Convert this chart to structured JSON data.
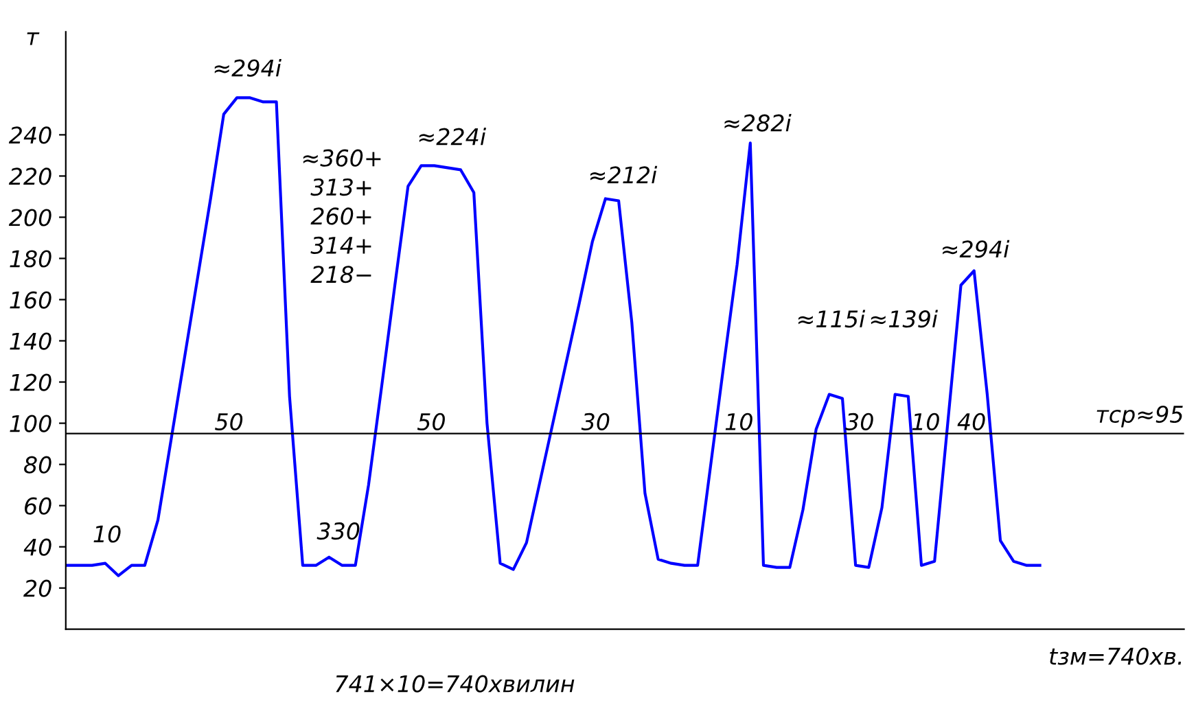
{
  "chart_data": {
    "type": "line",
    "ylabel": "т",
    "xlabel": "tзм=740хв.",
    "categories": [
      null,
      null,
      null,
      null,
      null,
      null,
      null,
      null,
      null,
      null,
      null,
      null,
      null,
      null,
      null,
      null,
      null,
      null,
      null,
      null,
      null,
      null,
      null,
      null,
      null,
      null,
      null,
      null,
      null,
      null,
      null,
      null,
      null,
      null,
      null,
      null,
      null,
      null,
      null,
      null,
      null,
      null,
      null,
      null,
      null,
      null,
      null,
      null,
      null,
      null,
      null,
      null,
      null,
      null,
      null,
      null,
      null,
      null,
      null,
      null,
      null,
      null,
      null,
      null,
      null,
      null,
      null,
      null,
      null,
      null,
      null,
      null,
      null,
      null,
      null
    ],
    "series": [
      {
        "color": "#0000ff",
        "values": [
          31,
          31,
          31,
          32,
          26,
          31,
          31,
          53,
          92,
          131,
          170,
          209,
          250,
          258,
          258,
          256,
          256,
          113,
          31,
          31,
          35,
          31,
          31,
          70,
          118,
          167,
          215,
          225,
          225,
          224,
          223,
          212,
          100,
          32,
          29,
          42,
          71,
          100,
          129,
          158,
          188,
          209,
          208,
          149,
          66,
          34,
          32,
          31,
          31,
          80,
          129,
          177,
          236,
          31,
          30,
          30,
          58,
          97,
          114,
          112,
          31,
          30,
          59,
          114,
          113,
          31,
          33,
          100,
          167,
          174,
          114,
          43,
          33,
          31,
          31
        ]
      }
    ],
    "ylim": [
      0,
      290
    ],
    "yticks": [
      20,
      40,
      60,
      80,
      100,
      120,
      140,
      160,
      180,
      200,
      220,
      240
    ],
    "tick_labels": "y",
    "grid": false,
    "ref_lines": [
      {
        "axis": "y",
        "value": 95,
        "label": "тср≈95",
        "color": "#000000"
      }
    ],
    "annotations": [
      "10",
      "≈294і",
      "≈360+\n313+\n260+\n314+\n218−",
      "50",
      "330",
      "≈224і",
      "50",
      "≈212і",
      "30",
      "≈282і",
      "10",
      "≈115і",
      "30",
      "≈139і",
      "10",
      "40",
      "≈294і",
      "741×10=740хвилин"
    ]
  }
}
